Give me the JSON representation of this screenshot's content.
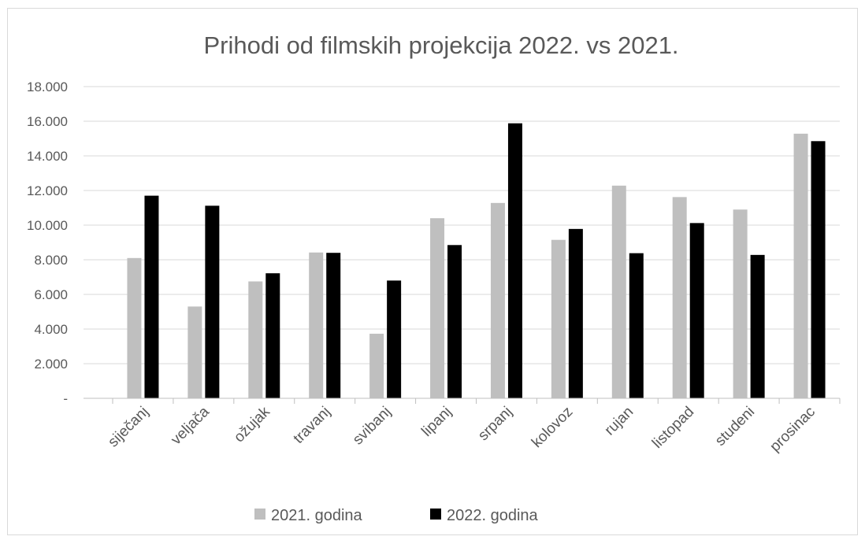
{
  "chart_data": {
    "type": "bar",
    "title": "Prihodi od filmskih projekcija 2022. vs 2021.",
    "xlabel": "",
    "ylabel": "",
    "ylim": [
      0,
      18000
    ],
    "yticks": [
      {
        "value": 0,
        "label": "-"
      },
      {
        "value": 2000,
        "label": "2.000"
      },
      {
        "value": 4000,
        "label": "4.000"
      },
      {
        "value": 6000,
        "label": "6.000"
      },
      {
        "value": 8000,
        "label": "8.000"
      },
      {
        "value": 10000,
        "label": "10.000"
      },
      {
        "value": 12000,
        "label": "12.000"
      },
      {
        "value": 14000,
        "label": "14.000"
      },
      {
        "value": 16000,
        "label": "16.000"
      },
      {
        "value": 18000,
        "label": "18.000"
      }
    ],
    "grid": true,
    "legend_position": "bottom",
    "categories": [
      "siječanj",
      "veljača",
      "ožujak",
      "travanj",
      "svibanj",
      "lipanj",
      "srpanj",
      "kolovoz",
      "rujan",
      "listopad",
      "studeni",
      "prosinac"
    ],
    "series": [
      {
        "name": "2021. godina",
        "color": "#bfbfbf",
        "values": [
          8100,
          5300,
          6750,
          8420,
          3730,
          10400,
          11280,
          9150,
          12280,
          11620,
          10900,
          15280
        ]
      },
      {
        "name": "2022. godina",
        "color": "#000000",
        "values": [
          11700,
          11120,
          7220,
          8400,
          6800,
          8850,
          15880,
          9780,
          8380,
          10120,
          8280,
          14850
        ]
      }
    ]
  }
}
